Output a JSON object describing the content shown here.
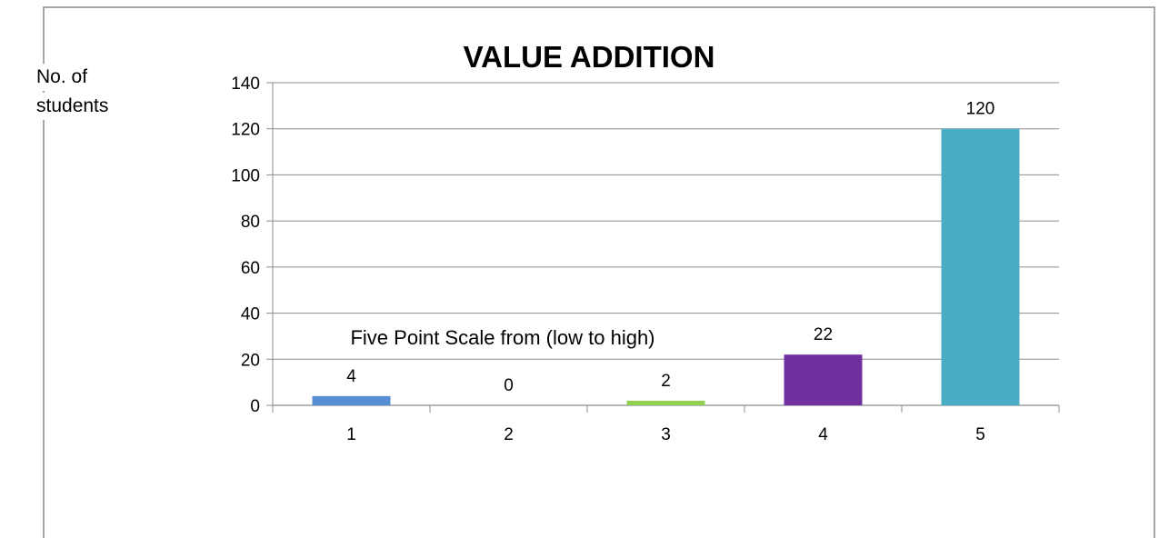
{
  "chart_data": {
    "type": "bar",
    "title": "VALUE ADDITION",
    "ylabel_lines": [
      "No. of",
      "students"
    ],
    "annotation": "Five Point Scale from (low to high)",
    "categories": [
      "1",
      "2",
      "3",
      "4",
      "5"
    ],
    "values": [
      4,
      0,
      2,
      22,
      120
    ],
    "data_labels": [
      "4",
      "0",
      "2",
      "22",
      "120"
    ],
    "yticks": [
      0,
      20,
      40,
      60,
      80,
      100,
      120,
      140
    ],
    "ylim": [
      0,
      140
    ],
    "grid": true,
    "legend": "none",
    "colors": [
      "#558ED5",
      "#C0504D",
      "#92D050",
      "#7030A0",
      "#4BACC6"
    ]
  }
}
